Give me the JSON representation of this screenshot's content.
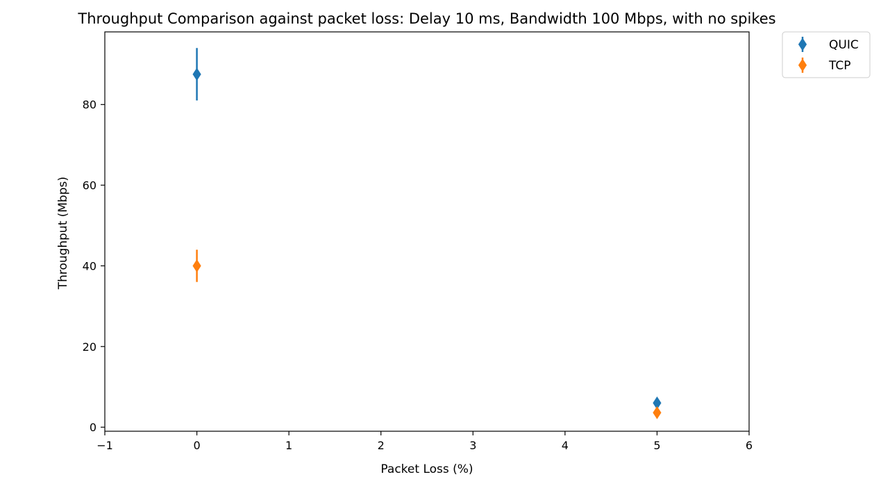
{
  "chart_data": {
    "type": "scatter",
    "title": "Throughput Comparison against packet loss: Delay 10 ms, Bandwidth 100 Mbps, with no spikes",
    "xlabel": "Packet Loss (%)",
    "ylabel": "Throughput (Mbps)",
    "xlim": [
      -1,
      6
    ],
    "ylim": [
      -1,
      98
    ],
    "xticks": [
      -1,
      0,
      1,
      2,
      3,
      4,
      5,
      6
    ],
    "xtick_labels": [
      "−1",
      "0",
      "1",
      "2",
      "3",
      "4",
      "5",
      "6"
    ],
    "yticks": [
      0,
      20,
      40,
      60,
      80
    ],
    "ytick_labels": [
      "0",
      "20",
      "40",
      "60",
      "80"
    ],
    "grid": false,
    "legend_position": "outside top-right",
    "marker": "thin-diamond",
    "series": [
      {
        "name": "QUIC",
        "color": "#1f77b4",
        "points": [
          {
            "x": 0,
            "y": 87.5,
            "err_low": 81,
            "err_high": 94
          },
          {
            "x": 5,
            "y": 6.0,
            "err_low": 5.0,
            "err_high": 7.0
          }
        ]
      },
      {
        "name": "TCP",
        "color": "#ff7f0e",
        "points": [
          {
            "x": 0,
            "y": 40.0,
            "err_low": 36,
            "err_high": 44
          },
          {
            "x": 5,
            "y": 3.6,
            "err_low": 2.6,
            "err_high": 4.6
          }
        ]
      }
    ]
  }
}
